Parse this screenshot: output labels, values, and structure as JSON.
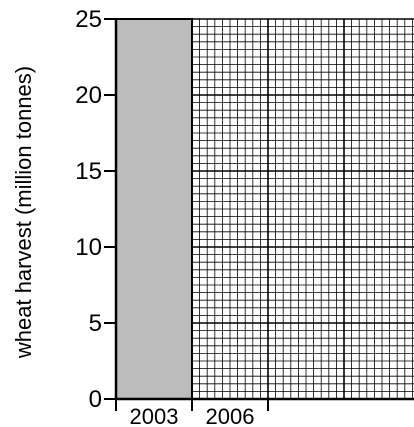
{
  "chart_data": {
    "type": "bar",
    "ylabel": "wheat harvest (million tonnes)",
    "xlabel": "",
    "ylim": [
      0,
      25
    ],
    "yticks": [
      0,
      5,
      10,
      15,
      20,
      25
    ],
    "categories": [
      "2003",
      "2006"
    ],
    "values": [
      25,
      null
    ],
    "bar_color": "#bcbcbc",
    "grid": true
  }
}
